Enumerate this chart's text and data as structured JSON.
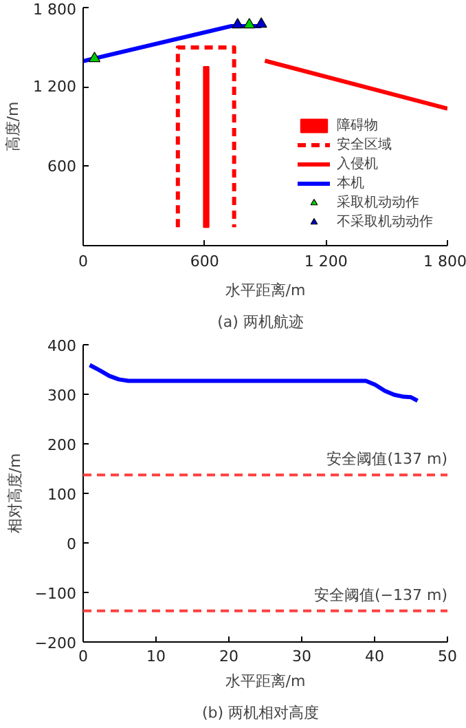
{
  "chart_data": [
    {
      "type": "line",
      "title": "(a)   两机航迹",
      "xlabel": "水平距离/m",
      "ylabel": "高度/m",
      "xlim": [
        0,
        1800
      ],
      "ylim": [
        0,
        1800
      ],
      "xticks": [
        0,
        600,
        {
          "value": 1200,
          "label": "1 200"
        },
        {
          "value": 1800,
          "label": "1 800"
        }
      ],
      "yticks": [
        600,
        {
          "value": 1200,
          "label": "1 200"
        },
        {
          "value": 1800,
          "label": "1 800"
        }
      ],
      "legend": "bottom right",
      "series": [
        {
          "name": "障碍物",
          "type": "bar",
          "color": "#ff0000",
          "x": [
            608
          ],
          "base": [
            139
          ],
          "values": [
            1214
          ]
        },
        {
          "name": "安全区域",
          "type": "line",
          "line_style": "dashed",
          "color": "#ff0000",
          "x": [
            468,
            468,
            746,
            746
          ],
          "values": [
            139,
            1498,
            1498,
            139
          ]
        },
        {
          "name": "入侵机",
          "type": "line",
          "color": "#ff0000",
          "x": [
            898,
            1800
          ],
          "values": [
            1398,
            1036
          ]
        },
        {
          "name": "本机",
          "type": "line",
          "color": "#0000ff",
          "x": [
            0,
            732,
            880
          ],
          "values": [
            1395,
            1660,
            1660
          ]
        },
        {
          "name": "采取机动动作",
          "type": "scatter",
          "marker": "triangle",
          "color": "#00cc00",
          "x": [
            56,
            821
          ],
          "values": [
            1415,
            1670
          ]
        },
        {
          "name": "不采取机动动作",
          "type": "scatter",
          "marker": "triangle",
          "color": "#0000cc",
          "x": [
            763,
            880
          ],
          "values": [
            1670,
            1675
          ]
        }
      ]
    },
    {
      "type": "line",
      "title": "(b)   两机相对高度",
      "xlabel": "水平距离/m",
      "ylabel": "相对高度/m",
      "xlim": [
        0,
        50
      ],
      "ylim": [
        -200,
        400
      ],
      "xticks": [
        0,
        10,
        20,
        30,
        40,
        50
      ],
      "yticks": [
        {
          "value": -200,
          "label": "−200"
        },
        {
          "value": -100,
          "label": "−100"
        },
        0,
        100,
        200,
        300,
        400
      ],
      "ref_lines": [
        {
          "axis": "y",
          "value": 137,
          "label": "安全阈值(137 m)",
          "color": "#ff4040",
          "line_style": "dashed"
        },
        {
          "axis": "y",
          "value": -137,
          "label": "安全阈值(−137 m)",
          "color": "#ff4040",
          "line_style": "dashed"
        }
      ],
      "series": [
        {
          "color": "#0000ff",
          "x": [
            0.9,
            2.3,
            3.6,
            4.9,
            6.2,
            10,
            20,
            30,
            38.8,
            40.1,
            41.4,
            42.7,
            44,
            45,
            45.9
          ],
          "values": [
            359,
            348,
            337,
            330,
            327,
            327,
            327,
            327,
            327,
            319,
            307,
            299,
            295,
            294,
            287
          ]
        }
      ]
    }
  ]
}
